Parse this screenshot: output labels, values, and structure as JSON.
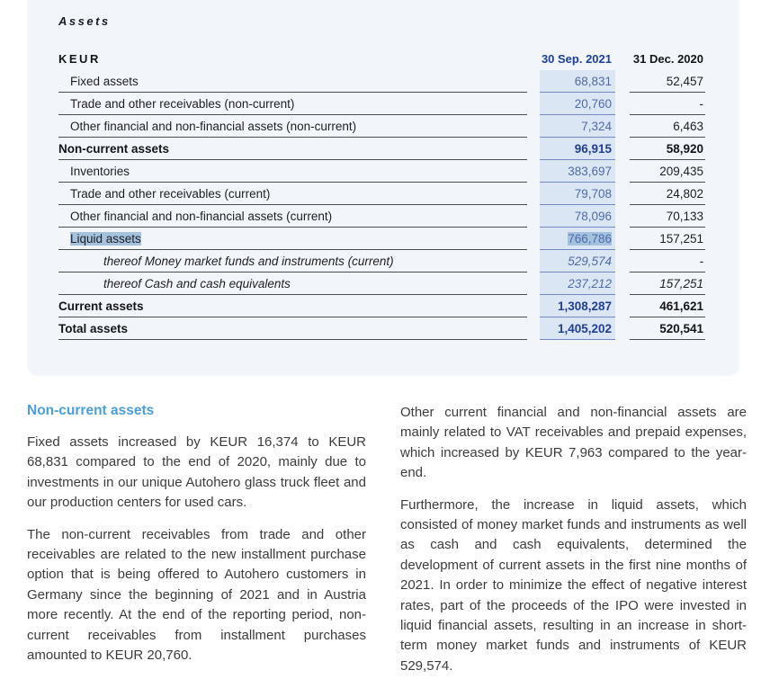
{
  "panel": {
    "section_title": "Assets",
    "table": {
      "unit_header": "KEUR",
      "col_2021": "30 Sep. 2021",
      "col_2020": "31 Dec. 2020",
      "rows": [
        {
          "label": "Fixed assets",
          "v2021": "68,831",
          "v2020": "52,457",
          "style": "normal",
          "highlight": false
        },
        {
          "label": "Trade and other receivables (non-current)",
          "v2021": "20,760",
          "v2020": "-",
          "style": "normal",
          "highlight": false
        },
        {
          "label": "Other financial and non-financial assets (non-current)",
          "v2021": "7,324",
          "v2020": "6,463",
          "style": "normal",
          "highlight": false
        },
        {
          "label": "Non-current assets",
          "v2021": "96,915",
          "v2020": "58,920",
          "style": "bold",
          "highlight": false
        },
        {
          "label": "Inventories",
          "v2021": "383,697",
          "v2020": "209,435",
          "style": "normal",
          "highlight": false
        },
        {
          "label": "Trade and other receivables (current)",
          "v2021": "79,708",
          "v2020": "24,802",
          "style": "normal",
          "highlight": false
        },
        {
          "label": "Other financial and non-financial assets (current)",
          "v2021": "78,096",
          "v2020": "70,133",
          "style": "normal",
          "highlight": false
        },
        {
          "label": "Liquid assets",
          "v2021": "766,786",
          "v2020": "157,251",
          "style": "normal",
          "highlight": true
        },
        {
          "label": "thereof Money market funds and instruments (current)",
          "v2021": "529,574",
          "v2020": "-",
          "style": "thereof",
          "highlight": false
        },
        {
          "label": "thereof Cash and cash equivalents",
          "v2021": "237,212",
          "v2020": "157,251",
          "style": "thereof",
          "highlight": false
        },
        {
          "label": "Current assets",
          "v2021": "1,308,287",
          "v2020": "461,621",
          "style": "bold",
          "highlight": false
        },
        {
          "label": "Total assets",
          "v2021": "1,405,202",
          "v2020": "520,541",
          "style": "bold",
          "highlight": false
        }
      ]
    }
  },
  "commentary": {
    "heading": "Non-current assets",
    "left_paragraphs": [
      "Fixed assets increased by KEUR 16,374 to KEUR 68,831 compared to the end of 2020, mainly due to investments in our unique Autohero glass truck fleet and our production centers for used cars.",
      "The non-current receivables from trade and other receivables are related to the new installment purchase option that is being offered to Autohero customers in Germany since the beginning of 2021 and in Austria more recently. At the end of the reporting period, non-current receivables from installment purchases amounted to KEUR 20,760."
    ],
    "right_paragraphs": [
      "Other current financial and non-financial assets are mainly related to VAT receivables and prepaid expenses, which increased by KEUR 7,963 compared to the year-end.",
      "Furthermore, the increase in liquid assets, which consisted of money market funds and instruments as well as cash and cash equivalents, determined the development of current assets in the first nine months of 2021. In order to minimize the effect of negative interest rates, part of the proceeds of the IPO were invested in liquid financial assets, resulting in an increase in short-term money market funds and instruments of KEUR 529,574."
    ]
  },
  "colors": {
    "panel_bg": "#f2f6fa",
    "band_bg": "#dbe6f4",
    "band_border": "#7289c3",
    "row_border": "#4d4d4d",
    "value_2021": "#4e6ba7",
    "value_2021_bold": "#213f92",
    "header_2021": "#1c3f9d",
    "selection_highlight": "#a4c2de",
    "heading_blue": "#4a9fd9",
    "body_text": "#3c3c3c"
  }
}
